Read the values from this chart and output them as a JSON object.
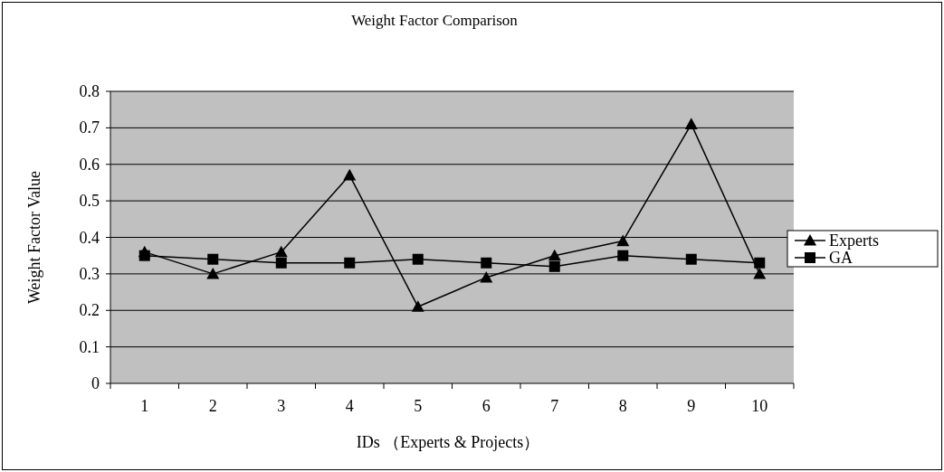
{
  "chart_data": {
    "type": "line",
    "title": "Weight Factor Comparison",
    "xlabel": "IDs （Experts & Projects）",
    "ylabel": "Weight Factor Value",
    "categories": [
      "1",
      "2",
      "3",
      "4",
      "5",
      "6",
      "7",
      "8",
      "9",
      "10"
    ],
    "series": [
      {
        "name": "Experts",
        "color": "#000000",
        "marker": "triangle",
        "values": [
          0.36,
          0.3,
          0.36,
          0.57,
          0.21,
          0.29,
          0.35,
          0.39,
          0.71,
          0.3
        ]
      },
      {
        "name": "GA",
        "color": "#000000",
        "marker": "square",
        "values": [
          0.35,
          0.34,
          0.33,
          0.33,
          0.34,
          0.33,
          0.32,
          0.35,
          0.34,
          0.33
        ]
      }
    ],
    "ylim": [
      0,
      0.8
    ],
    "yticks": [
      0,
      0.1,
      0.2,
      0.3,
      0.4,
      0.5,
      0.6,
      0.7,
      0.8
    ],
    "grid": "y",
    "legend": "right"
  }
}
